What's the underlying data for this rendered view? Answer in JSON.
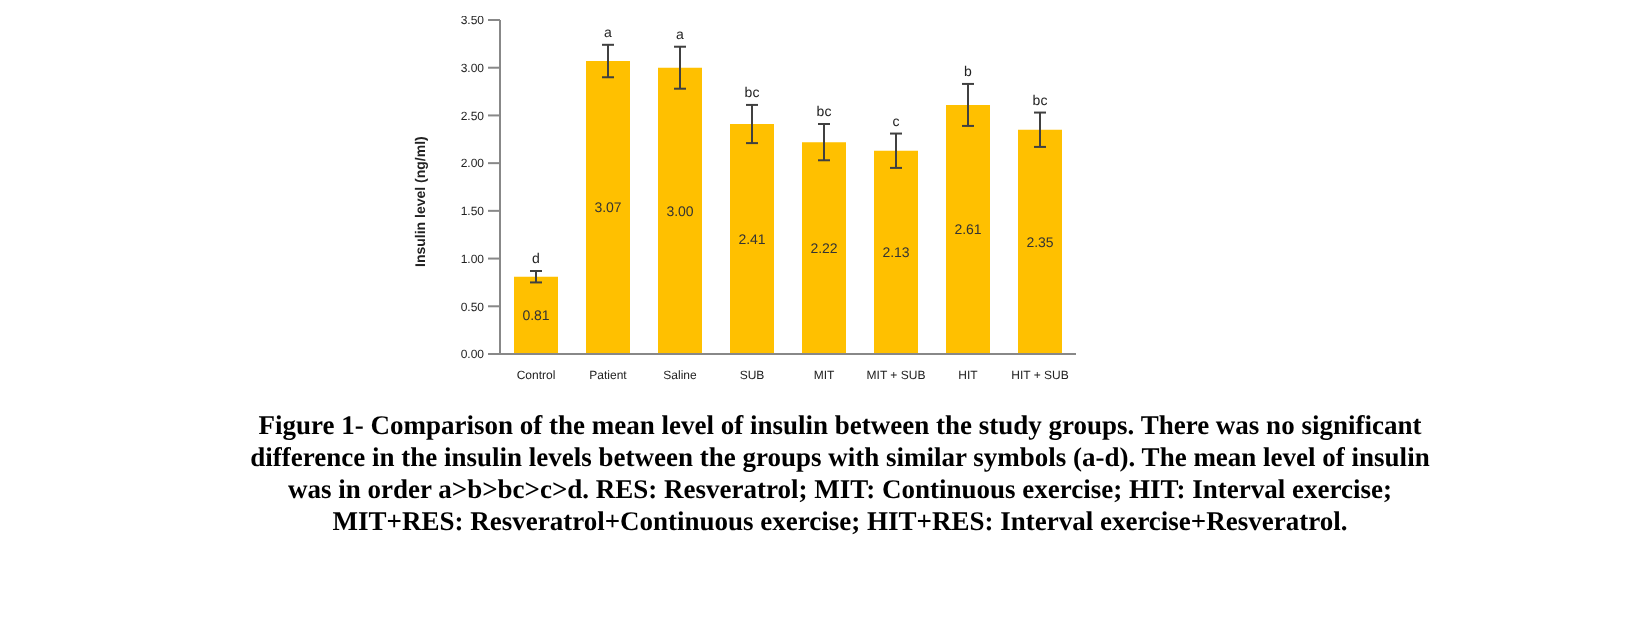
{
  "chart_data": {
    "type": "bar",
    "ylabel": "Insulin level (ng/ml)",
    "categories": [
      "Control",
      "Patient",
      "Saline",
      "SUB",
      "MIT",
      "MIT + SUB",
      "HIT",
      "HIT + SUB"
    ],
    "values": [
      0.81,
      3.07,
      3.0,
      2.41,
      2.22,
      2.13,
      2.61,
      2.35
    ],
    "errors": [
      0.06,
      0.17,
      0.22,
      0.2,
      0.19,
      0.18,
      0.22,
      0.18
    ],
    "color": "#ffc000",
    "value_labels": [
      "0.81",
      "3.07",
      "3.00",
      "2.41",
      "2.22",
      "2.13",
      "2.61",
      "2.35"
    ],
    "ylim": [
      0,
      3.5
    ],
    "yticks": [
      {
        "value": 0,
        "label": "0.00"
      },
      {
        "value": 0.5,
        "label": "0.50"
      },
      {
        "value": 1,
        "label": "1.00"
      },
      {
        "value": 1.5,
        "label": "1.50"
      },
      {
        "value": 2,
        "label": "2.00"
      },
      {
        "value": 2.5,
        "label": "2.50"
      },
      {
        "value": 3,
        "label": "3.00"
      },
      {
        "value": 3.5,
        "label": "3.50"
      }
    ],
    "grid": false,
    "annotations": [
      {
        "text": "d",
        "x": "Control",
        "y": 0.87
      },
      {
        "text": "a",
        "x": "Patient",
        "y": 3.24
      },
      {
        "text": "a",
        "x": "Saline",
        "y": 3.22
      },
      {
        "text": "bc",
        "x": "SUB",
        "y": 2.61
      },
      {
        "text": "bc",
        "x": "MIT",
        "y": 2.41
      },
      {
        "text": "c",
        "x": "MIT + SUB",
        "y": 2.31
      },
      {
        "text": "b",
        "x": "HIT",
        "y": 2.83
      },
      {
        "text": "bc",
        "x": "HIT + SUB",
        "y": 2.53
      },
      "Figure 1- Comparison of the mean level of insulin between the study groups. There was no significant difference in the insulin levels between the groups with similar symbols (a-d). The mean level of insulin was in order a>b>bc>c>d. RES: Resveratrol; MIT: Continuous exercise; HIT: Interval exercise; MIT+RES: Resveratrol+Continuous exercise; HIT+RES:  Interval exercise+Resveratrol."
    ]
  }
}
